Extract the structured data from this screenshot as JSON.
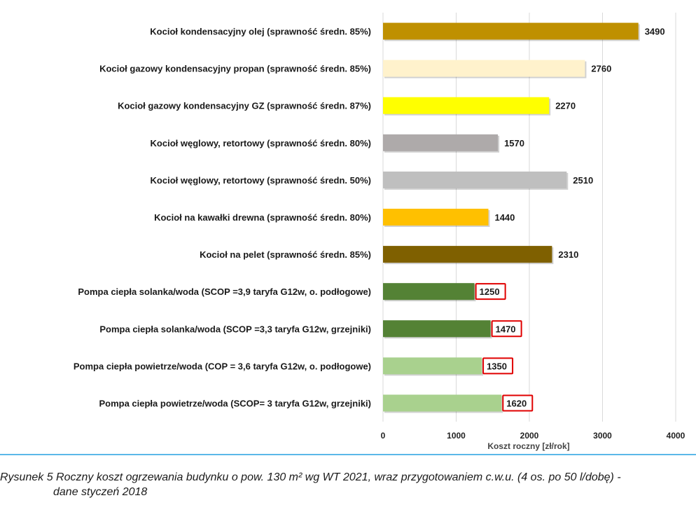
{
  "chart_data": {
    "type": "bar",
    "orientation": "horizontal",
    "categories": [
      "Kocioł  kondensacyjny olej (sprawność średn. 85%)",
      "Kocioł gazowy kondensacyjny propan (sprawność średn. 85%)",
      "Kocioł gazowy kondensacyjny GZ (sprawność średn. 87%)",
      "Kocioł węglowy, retortowy (sprawność średn. 80%)",
      "Kocioł węglowy, retortowy (sprawność średn. 50%)",
      "Kocioł na kawałki drewna (sprawność średn. 80%)",
      "Kocioł na pelet (sprawność średn. 85%)",
      "Pompa ciepła solanka/woda (SCOP =3,9 taryfa G12w, o. podłogowe)",
      "Pompa ciepła solanka/woda (SCOP =3,3 taryfa G12w, grzejniki)",
      "Pompa ciepła powietrze/woda (COP = 3,6 taryfa G12w, o. podłogowe)",
      "Pompa ciepła powietrze/woda (SCOP= 3 taryfa G12w, grzejniki)"
    ],
    "values": [
      3490,
      2760,
      2270,
      1570,
      2510,
      1440,
      2310,
      1250,
      1470,
      1350,
      1620
    ],
    "colors": [
      "#bf9000",
      "#fff2cc",
      "#ffff00",
      "#aeaaaa",
      "#bfbfbf",
      "#ffc000",
      "#7f6000",
      "#548235",
      "#548235",
      "#a9d18e",
      "#a9d18e"
    ],
    "highlighted": [
      false,
      false,
      false,
      false,
      false,
      false,
      false,
      true,
      true,
      true,
      true
    ],
    "highlight_color": "#e00000",
    "xlabel": "Koszt roczny [zł/rok]",
    "xlim": [
      0,
      4000
    ],
    "xticks": [
      0,
      1000,
      2000,
      3000,
      4000
    ],
    "grid": true
  },
  "caption": {
    "line1": "Rysunek 5 Roczny koszt ogrzewania budynku o pow. 130 m² wg WT 2021, wraz przygotowaniem c.w.u. (4 os. po 50 l/dobę) -",
    "line2": "dane styczeń 2018"
  }
}
